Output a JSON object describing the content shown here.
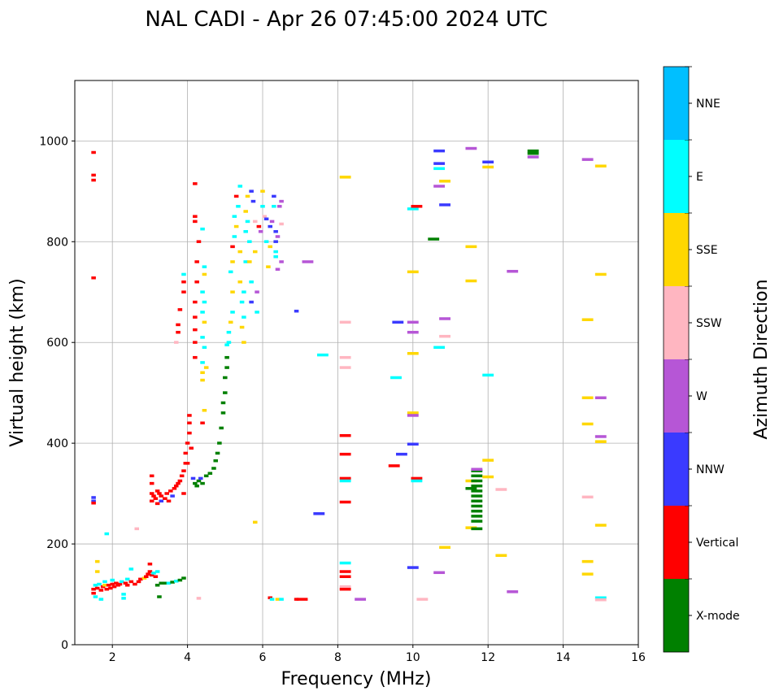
{
  "chart_data": {
    "type": "scatter",
    "title": "NAL CADI - Apr 26 07:45:00 2024 UTC",
    "xlabel": "Frequency (MHz)",
    "ylabel": "Virtual height (km)",
    "xlim": [
      1,
      16
    ],
    "ylim": [
      0,
      1120
    ],
    "xticks": [
      2,
      4,
      6,
      8,
      10,
      12,
      14,
      16
    ],
    "yticks": [
      0,
      200,
      400,
      600,
      800,
      1000
    ],
    "grid": true,
    "colorbar": {
      "label": "Azimuth Direction",
      "categories": [
        "X-mode",
        "Vertical",
        "NNW",
        "W",
        "SSW",
        "SSE",
        "E",
        "NNE"
      ],
      "colors": [
        "#008000",
        "#ff0000",
        "#3a3aff",
        "#b656d6",
        "#ffb6c1",
        "#ffd700",
        "#00ffff",
        "#00bfff"
      ]
    },
    "point_format": [
      "frequency_mhz",
      "virtual_height_km",
      "direction_index"
    ],
    "points": [
      [
        1.5,
        977,
        1
      ],
      [
        1.5,
        932,
        1
      ],
      [
        1.5,
        922,
        1
      ],
      [
        1.5,
        728,
        1
      ],
      [
        1.5,
        292,
        2
      ],
      [
        1.5,
        285,
        2
      ],
      [
        1.5,
        281,
        1
      ],
      [
        1.5,
        110,
        1
      ],
      [
        1.5,
        102,
        1
      ],
      [
        1.55,
        118,
        6
      ],
      [
        1.55,
        95,
        6
      ],
      [
        1.6,
        145,
        5
      ],
      [
        1.6,
        165,
        5
      ],
      [
        1.6,
        112,
        1
      ],
      [
        1.65,
        120,
        6
      ],
      [
        1.7,
        108,
        1
      ],
      [
        1.7,
        90,
        6
      ],
      [
        1.75,
        115,
        1
      ],
      [
        1.8,
        125,
        6
      ],
      [
        1.8,
        118,
        5
      ],
      [
        1.85,
        110,
        1
      ],
      [
        1.85,
        220,
        6
      ],
      [
        1.9,
        118,
        1
      ],
      [
        1.95,
        112,
        1
      ],
      [
        2.0,
        120,
        1
      ],
      [
        2.0,
        128,
        6
      ],
      [
        2.05,
        115,
        1
      ],
      [
        2.1,
        122,
        1
      ],
      [
        2.15,
        118,
        1
      ],
      [
        2.2,
        120,
        1
      ],
      [
        2.25,
        125,
        6
      ],
      [
        2.3,
        92,
        6
      ],
      [
        2.3,
        100,
        6
      ],
      [
        2.35,
        122,
        1
      ],
      [
        2.4,
        130,
        6
      ],
      [
        2.4,
        118,
        1
      ],
      [
        2.5,
        125,
        1
      ],
      [
        2.5,
        150,
        6
      ],
      [
        2.6,
        120,
        1
      ],
      [
        2.65,
        230,
        4
      ],
      [
        2.7,
        125,
        1
      ],
      [
        2.75,
        130,
        1
      ],
      [
        2.85,
        132,
        5
      ],
      [
        2.9,
        135,
        1
      ],
      [
        2.95,
        140,
        1
      ],
      [
        3.0,
        160,
        1
      ],
      [
        3.0,
        145,
        1
      ],
      [
        3.05,
        138,
        1
      ],
      [
        3.1,
        142,
        6
      ],
      [
        3.15,
        135,
        1
      ],
      [
        3.2,
        145,
        6
      ],
      [
        3.2,
        118,
        0
      ],
      [
        3.25,
        95,
        0
      ],
      [
        3.3,
        122,
        0
      ],
      [
        3.4,
        122,
        0
      ],
      [
        3.5,
        122,
        6
      ],
      [
        3.6,
        124,
        0
      ],
      [
        3.7,
        126,
        6
      ],
      [
        3.8,
        128,
        0
      ],
      [
        3.9,
        132,
        0
      ],
      [
        3.05,
        335,
        1
      ],
      [
        3.05,
        320,
        1
      ],
      [
        3.05,
        300,
        1
      ],
      [
        3.05,
        285,
        1
      ],
      [
        3.1,
        295,
        1
      ],
      [
        3.15,
        290,
        1
      ],
      [
        3.2,
        280,
        1
      ],
      [
        3.2,
        305,
        1
      ],
      [
        3.25,
        300,
        1
      ],
      [
        3.3,
        285,
        2
      ],
      [
        3.3,
        295,
        1
      ],
      [
        3.4,
        290,
        1
      ],
      [
        3.45,
        300,
        1
      ],
      [
        3.5,
        285,
        1
      ],
      [
        3.55,
        305,
        1
      ],
      [
        3.6,
        295,
        2
      ],
      [
        3.65,
        310,
        1
      ],
      [
        3.7,
        315,
        1
      ],
      [
        3.75,
        320,
        1
      ],
      [
        3.8,
        325,
        1
      ],
      [
        3.85,
        335,
        1
      ],
      [
        3.9,
        345,
        1
      ],
      [
        3.9,
        300,
        1
      ],
      [
        3.95,
        360,
        1
      ],
      [
        3.95,
        380,
        1
      ],
      [
        4.0,
        400,
        1
      ],
      [
        4.05,
        420,
        1
      ],
      [
        4.05,
        440,
        1
      ],
      [
        4.05,
        455,
        1
      ],
      [
        4.0,
        360,
        1
      ],
      [
        4.1,
        390,
        1
      ],
      [
        4.4,
        440,
        1
      ],
      [
        4.45,
        465,
        5
      ],
      [
        4.15,
        330,
        2
      ],
      [
        4.2,
        320,
        0
      ],
      [
        4.25,
        315,
        0
      ],
      [
        4.3,
        325,
        0
      ],
      [
        4.35,
        330,
        2
      ],
      [
        4.4,
        320,
        0
      ],
      [
        4.5,
        335,
        0
      ],
      [
        4.6,
        340,
        0
      ],
      [
        4.7,
        350,
        0
      ],
      [
        4.75,
        365,
        0
      ],
      [
        4.8,
        380,
        0
      ],
      [
        4.85,
        400,
        0
      ],
      [
        4.9,
        430,
        0
      ],
      [
        4.95,
        460,
        0
      ],
      [
        4.95,
        480,
        0
      ],
      [
        5.0,
        500,
        0
      ],
      [
        5.0,
        530,
        0
      ],
      [
        5.05,
        550,
        0
      ],
      [
        5.05,
        570,
        0
      ],
      [
        5.05,
        595,
        6
      ],
      [
        3.9,
        700,
        1
      ],
      [
        3.9,
        720,
        1
      ],
      [
        3.9,
        735,
        6
      ],
      [
        3.8,
        665,
        1
      ],
      [
        3.75,
        635,
        1
      ],
      [
        3.75,
        620,
        1
      ],
      [
        3.7,
        600,
        4
      ],
      [
        4.2,
        680,
        1
      ],
      [
        4.2,
        650,
        1
      ],
      [
        4.2,
        625,
        1
      ],
      [
        4.2,
        570,
        1
      ],
      [
        4.2,
        600,
        1
      ],
      [
        4.25,
        720,
        1
      ],
      [
        4.25,
        760,
        1
      ],
      [
        4.3,
        800,
        1
      ],
      [
        4.2,
        840,
        1
      ],
      [
        4.2,
        850,
        1
      ],
      [
        4.2,
        915,
        1
      ],
      [
        4.4,
        825,
        6
      ],
      [
        4.45,
        750,
        6
      ],
      [
        4.45,
        735,
        5
      ],
      [
        4.4,
        700,
        6
      ],
      [
        4.45,
        680,
        6
      ],
      [
        4.4,
        660,
        6
      ],
      [
        4.45,
        640,
        5
      ],
      [
        4.4,
        610,
        6
      ],
      [
        4.45,
        590,
        6
      ],
      [
        4.4,
        560,
        6
      ],
      [
        4.4,
        540,
        5
      ],
      [
        4.4,
        525,
        5
      ],
      [
        4.5,
        550,
        5
      ],
      [
        5.1,
        600,
        6
      ],
      [
        5.1,
        620,
        6
      ],
      [
        5.15,
        640,
        5
      ],
      [
        5.2,
        660,
        6
      ],
      [
        5.2,
        700,
        5
      ],
      [
        5.15,
        740,
        6
      ],
      [
        5.2,
        760,
        5
      ],
      [
        5.2,
        790,
        1
      ],
      [
        5.25,
        810,
        6
      ],
      [
        5.25,
        850,
        6
      ],
      [
        5.3,
        890,
        1
      ],
      [
        5.3,
        830,
        5
      ],
      [
        5.35,
        870,
        6
      ],
      [
        5.4,
        910,
        6
      ],
      [
        5.4,
        780,
        5
      ],
      [
        5.4,
        720,
        5
      ],
      [
        5.45,
        680,
        6
      ],
      [
        5.45,
        630,
        5
      ],
      [
        5.5,
        600,
        5
      ],
      [
        5.5,
        650,
        6
      ],
      [
        5.5,
        700,
        6
      ],
      [
        5.55,
        760,
        6
      ],
      [
        5.55,
        820,
        6
      ],
      [
        5.55,
        860,
        5
      ],
      [
        5.6,
        890,
        5
      ],
      [
        5.6,
        840,
        6
      ],
      [
        5.65,
        800,
        6
      ],
      [
        5.65,
        760,
        5
      ],
      [
        5.7,
        720,
        6
      ],
      [
        5.7,
        680,
        2
      ],
      [
        5.7,
        900,
        2
      ],
      [
        5.75,
        880,
        2
      ],
      [
        5.8,
        840,
        4
      ],
      [
        5.8,
        780,
        5
      ],
      [
        5.85,
        700,
        3
      ],
      [
        5.85,
        660,
        6
      ],
      [
        5.9,
        830,
        1
      ],
      [
        5.95,
        820,
        3
      ],
      [
        6.0,
        900,
        5
      ],
      [
        6.0,
        870,
        6
      ],
      [
        6.05,
        850,
        4
      ],
      [
        6.1,
        845,
        2
      ],
      [
        6.1,
        800,
        6
      ],
      [
        6.15,
        750,
        5
      ],
      [
        6.2,
        830,
        2
      ],
      [
        6.2,
        790,
        5
      ],
      [
        6.3,
        890,
        2
      ],
      [
        6.3,
        870,
        6
      ],
      [
        6.35,
        820,
        2
      ],
      [
        6.35,
        800,
        2
      ],
      [
        6.35,
        780,
        6
      ],
      [
        6.35,
        770,
        6
      ],
      [
        6.4,
        745,
        3
      ],
      [
        6.4,
        810,
        3
      ],
      [
        6.45,
        870,
        3
      ],
      [
        6.5,
        880,
        3
      ],
      [
        6.5,
        835,
        4
      ],
      [
        6.5,
        760,
        3
      ],
      [
        6.25,
        840,
        3
      ],
      [
        4.3,
        92,
        4
      ],
      [
        5.8,
        243,
        5
      ],
      [
        6.2,
        93,
        1
      ],
      [
        6.25,
        90,
        6
      ],
      [
        6.4,
        90,
        5
      ],
      [
        6.5,
        90,
        6
      ],
      [
        6.9,
        90,
        1
      ],
      [
        7.05,
        90,
        1
      ],
      [
        6.9,
        662,
        2
      ],
      [
        7.2,
        760,
        3
      ],
      [
        7.5,
        260,
        2
      ],
      [
        7.6,
        575,
        6
      ],
      [
        8.2,
        928,
        5
      ],
      [
        8.2,
        640,
        4
      ],
      [
        8.2,
        570,
        4
      ],
      [
        8.2,
        550,
        4
      ],
      [
        8.2,
        415,
        1
      ],
      [
        8.2,
        378,
        1
      ],
      [
        8.2,
        330,
        1
      ],
      [
        8.2,
        325,
        6
      ],
      [
        8.2,
        283,
        1
      ],
      [
        8.2,
        162,
        6
      ],
      [
        8.2,
        145,
        1
      ],
      [
        8.2,
        135,
        1
      ],
      [
        8.2,
        115,
        4
      ],
      [
        8.2,
        110,
        1
      ],
      [
        8.6,
        90,
        3
      ],
      [
        9.55,
        530,
        6
      ],
      [
        9.5,
        355,
        1
      ],
      [
        9.7,
        378,
        2
      ],
      [
        9.6,
        640,
        2
      ],
      [
        10.0,
        865,
        6
      ],
      [
        10.0,
        740,
        5
      ],
      [
        10.0,
        640,
        3
      ],
      [
        10.0,
        620,
        3
      ],
      [
        10.0,
        578,
        5
      ],
      [
        10.0,
        460,
        5
      ],
      [
        10.0,
        455,
        3
      ],
      [
        10.0,
        398,
        2
      ],
      [
        10.0,
        153,
        2
      ],
      [
        10.1,
        870,
        1
      ],
      [
        10.1,
        330,
        1
      ],
      [
        10.1,
        325,
        6
      ],
      [
        10.25,
        90,
        4
      ],
      [
        10.55,
        805,
        0
      ],
      [
        10.7,
        980,
        2
      ],
      [
        10.7,
        955,
        2
      ],
      [
        10.7,
        945,
        6
      ],
      [
        10.7,
        910,
        3
      ],
      [
        10.7,
        590,
        6
      ],
      [
        10.7,
        143,
        3
      ],
      [
        10.85,
        920,
        5
      ],
      [
        10.85,
        873,
        2
      ],
      [
        10.85,
        647,
        3
      ],
      [
        10.85,
        612,
        4
      ],
      [
        10.85,
        193,
        5
      ],
      [
        11.55,
        985,
        3
      ],
      [
        11.55,
        790,
        5
      ],
      [
        11.55,
        722,
        5
      ],
      [
        11.55,
        325,
        5
      ],
      [
        11.55,
        310,
        0
      ],
      [
        11.55,
        232,
        5
      ],
      [
        11.7,
        345,
        0
      ],
      [
        11.7,
        335,
        0
      ],
      [
        11.7,
        325,
        0
      ],
      [
        11.7,
        315,
        0
      ],
      [
        11.7,
        305,
        0
      ],
      [
        11.7,
        295,
        0
      ],
      [
        11.7,
        285,
        0
      ],
      [
        11.7,
        275,
        0
      ],
      [
        11.7,
        265,
        0
      ],
      [
        11.7,
        255,
        0
      ],
      [
        11.7,
        245,
        0
      ],
      [
        11.7,
        348,
        3
      ],
      [
        11.7,
        230,
        0
      ],
      [
        12.0,
        958,
        2
      ],
      [
        12.0,
        948,
        5
      ],
      [
        12.0,
        535,
        6
      ],
      [
        12.0,
        366,
        5
      ],
      [
        12.0,
        333,
        5
      ],
      [
        12.35,
        308,
        4
      ],
      [
        12.35,
        177,
        5
      ],
      [
        12.65,
        741,
        3
      ],
      [
        12.65,
        105,
        3
      ],
      [
        13.2,
        980,
        0
      ],
      [
        13.2,
        975,
        0
      ],
      [
        13.2,
        968,
        3
      ],
      [
        14.65,
        963,
        3
      ],
      [
        14.65,
        645,
        5
      ],
      [
        14.65,
        490,
        5
      ],
      [
        14.65,
        438,
        5
      ],
      [
        14.65,
        293,
        4
      ],
      [
        14.65,
        165,
        5
      ],
      [
        14.65,
        140,
        5
      ],
      [
        15.0,
        950,
        5
      ],
      [
        15.0,
        735,
        5
      ],
      [
        15.0,
        490,
        3
      ],
      [
        15.0,
        413,
        3
      ],
      [
        15.0,
        403,
        5
      ],
      [
        15.0,
        237,
        5
      ],
      [
        15.0,
        93,
        6
      ],
      [
        15.0,
        89,
        4
      ]
    ]
  }
}
